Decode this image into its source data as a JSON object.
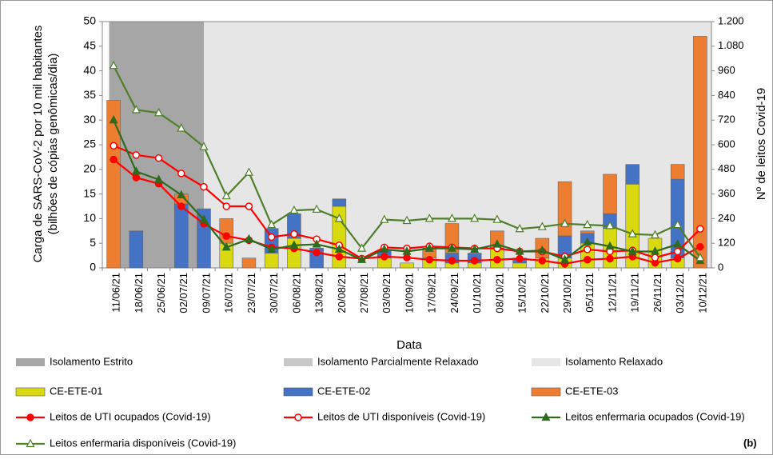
{
  "chart_data": {
    "type": "bar",
    "ylabel": [
      "Carga de SARS-CoV-2 por 10 mil habitantes",
      "(bilhões de cópias genômicas/dia)"
    ],
    "y2label": "Nº de leitos Covid-19",
    "xlabel": "Data",
    "panel_label": "(b)",
    "categories": [
      "11/06/21",
      "18/06/21",
      "25/06/21",
      "02/07/21",
      "09/07/21",
      "16/07/21",
      "23/07/21",
      "30/07/21",
      "06/08/21",
      "13/08/21",
      "20/08/21",
      "27/08/21",
      "03/09/21",
      "10/09/21",
      "17/09/21",
      "24/09/21",
      "01/10/21",
      "08/10/21",
      "15/10/21",
      "22/10/21",
      "29/10/21",
      "05/11/21",
      "12/11/21",
      "19/11/21",
      "26/11/21",
      "03/12/21",
      "10/12/21"
    ],
    "ylim": [
      0,
      50
    ],
    "yticks": [
      0,
      5,
      10,
      15,
      20,
      25,
      30,
      35,
      40,
      45,
      50
    ],
    "y2lim": [
      0,
      1200
    ],
    "y2ticks": [
      0,
      120,
      240,
      360,
      480,
      600,
      720,
      840,
      960,
      {
        "value": 1080,
        "label": "1.080"
      },
      {
        "value": 1200,
        "label": "1.200"
      }
    ],
    "periods": [
      {
        "name": "Isolamento Estrito",
        "color": "#a6a6a6",
        "from": "11/06/21",
        "to": "09/07/21"
      },
      {
        "name": "Isolamento Parcialmente Relaxado",
        "color": "#c8c8c8"
      },
      {
        "name": "Isolamento Relaxado",
        "color": "#e6e6e6",
        "from": "09/07/21",
        "to": "10/12/21"
      }
    ],
    "series": [
      {
        "name": "CE-ETE-01",
        "type": "bar",
        "color": "#d9d90f",
        "values": [
          0,
          0,
          0,
          0,
          0,
          5,
          0,
          3,
          6,
          0,
          12.5,
          0,
          2,
          1,
          2,
          1,
          1,
          4,
          1,
          2,
          2,
          5,
          8,
          17,
          6,
          2,
          0
        ]
      },
      {
        "name": "CE-ETE-02",
        "type": "bar",
        "color": "#4472c4",
        "values": [
          0,
          7.5,
          0,
          13,
          12,
          0,
          0,
          5,
          5,
          4,
          1.5,
          0,
          1.5,
          0,
          0,
          2,
          2,
          0,
          1,
          0,
          4.5,
          2,
          3,
          4,
          0,
          16,
          0
        ]
      },
      {
        "name": "CE-ETE-03",
        "type": "bar",
        "color": "#ed7d31",
        "values": [
          34,
          0,
          0,
          2,
          0,
          5,
          2,
          0,
          0,
          0,
          0,
          0,
          0,
          0,
          2,
          6,
          0,
          3.5,
          0,
          4,
          11,
          0.5,
          8,
          0,
          0,
          3,
          47
        ]
      },
      {
        "name": "Leitos de UTI ocupados (Covid-19)",
        "type": "line",
        "axis": "y2",
        "color": "#ff0000",
        "marker": "circle",
        "filled": true,
        "values": [
          528,
          440,
          410,
          300,
          215,
          155,
          135,
          100,
          95,
          75,
          55,
          45,
          55,
          50,
          40,
          35,
          35,
          40,
          45,
          35,
          20,
          40,
          45,
          55,
          25,
          45,
          103
        ]
      },
      {
        "name": "Leitos de UTI disponíveis (Covid-19)",
        "type": "line",
        "axis": "y2",
        "color": "#ff0000",
        "marker": "circle",
        "filled": false,
        "values": [
          595,
          550,
          535,
          460,
          395,
          300,
          300,
          150,
          165,
          140,
          110,
          45,
          100,
          95,
          105,
          100,
          95,
          95,
          80,
          80,
          55,
          90,
          80,
          85,
          50,
          80,
          190
        ]
      },
      {
        "name": "Leitos enfermaria ocupados (Covid-19)",
        "type": "line",
        "axis": "y2",
        "color": "#2e6b1e",
        "marker": "triangle",
        "filled": true,
        "values": [
          720,
          470,
          430,
          355,
          235,
          100,
          140,
          90,
          110,
          115,
          90,
          40,
          90,
          80,
          95,
          95,
          90,
          115,
          80,
          85,
          40,
          125,
          105,
          80,
          80,
          115,
          35
        ]
      },
      {
        "name": "Leitos enfermaria disponíveis (Covid-19)",
        "type": "line",
        "axis": "y2",
        "color": "#4f7f2b",
        "marker": "triangle",
        "filled": false,
        "values": [
          985,
          770,
          755,
          680,
          590,
          350,
          465,
          210,
          280,
          285,
          240,
          95,
          235,
          230,
          240,
          240,
          240,
          235,
          190,
          200,
          215,
          210,
          205,
          165,
          160,
          210,
          50
        ]
      }
    ]
  }
}
